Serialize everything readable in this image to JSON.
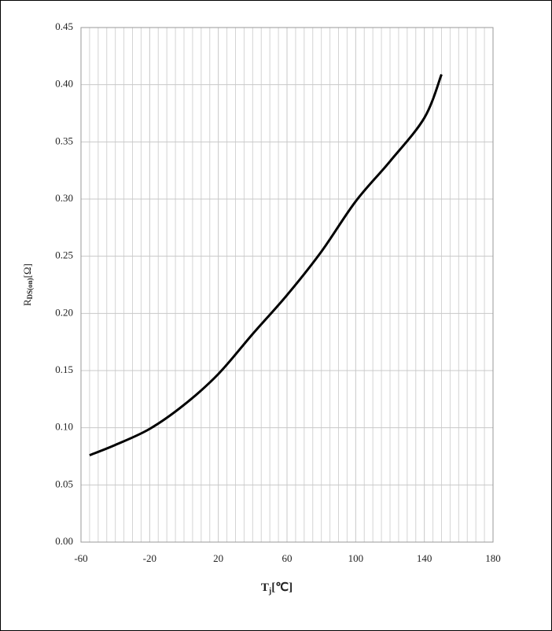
{
  "chart_data": {
    "type": "line",
    "y_label": "R",
    "y_label_subscript": "DS(on)",
    "y_label_unit": "[Ω]",
    "x_label": "T",
    "x_label_subscript": "j",
    "x_label_unit": "[℃]",
    "xlim": [
      -60,
      180
    ],
    "xticks": [
      -60,
      -20,
      20,
      60,
      100,
      140,
      180
    ],
    "xminorticks": [
      -55,
      -50,
      -45,
      -40,
      -35,
      -30,
      -25,
      -15,
      -10,
      -5,
      0,
      5,
      10,
      15,
      25,
      30,
      35,
      40,
      45,
      50,
      55,
      65,
      70,
      75,
      80,
      85,
      90,
      95,
      105,
      110,
      115,
      120,
      125,
      130,
      135,
      145,
      150,
      155,
      160,
      165,
      170,
      175
    ],
    "ylim": [
      0,
      0.45
    ],
    "yticks": [
      {
        "value": 0,
        "label": "0.00"
      },
      {
        "value": 0.05,
        "label": "0.05"
      },
      {
        "value": 0.1,
        "label": "0.10"
      },
      {
        "value": 0.15,
        "label": "0.15"
      },
      {
        "value": 0.2,
        "label": "0.20"
      },
      {
        "value": 0.25,
        "label": "0.25"
      },
      {
        "value": 0.3,
        "label": "0.30"
      },
      {
        "value": 0.35,
        "label": "0.35"
      },
      {
        "value": 0.4,
        "label": "0.40"
      },
      {
        "value": 0.45,
        "label": "0.45"
      }
    ],
    "grid": true,
    "series": [
      {
        "color": "#000000",
        "x": [
          -55,
          -40,
          -20,
          0,
          20,
          40,
          60,
          80,
          100,
          120,
          140,
          150
        ],
        "values": [
          0.076,
          0.085,
          0.099,
          0.12,
          0.147,
          0.182,
          0.216,
          0.254,
          0.298,
          0.333,
          0.371,
          0.409
        ]
      }
    ]
  }
}
